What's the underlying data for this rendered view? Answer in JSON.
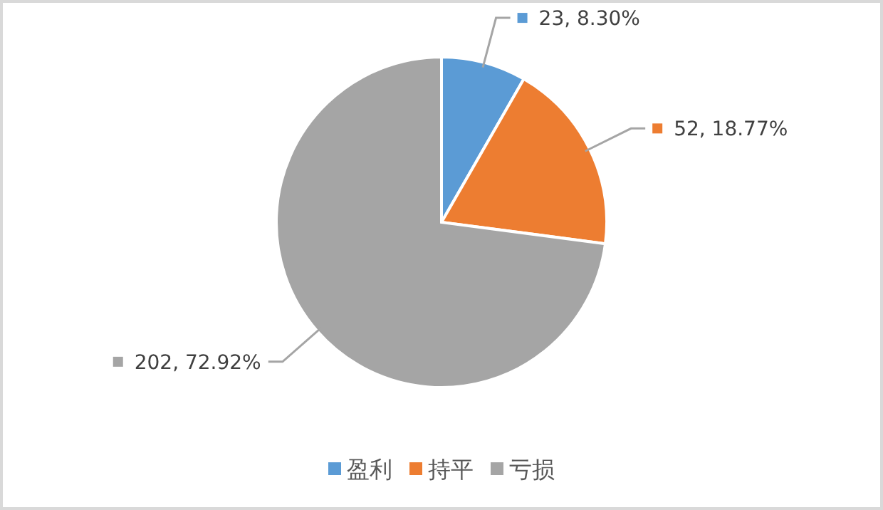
{
  "chart_data": {
    "type": "pie",
    "categories": [
      "盈利",
      "持平",
      "亏损"
    ],
    "values": [
      23,
      52,
      202
    ],
    "colors": [
      "#5b9bd5",
      "#ed7d31",
      "#a5a5a5"
    ],
    "value_labels": [
      "23, 8.30%",
      "52, 18.77%",
      "202, 72.92%"
    ],
    "legend": "bottom"
  }
}
